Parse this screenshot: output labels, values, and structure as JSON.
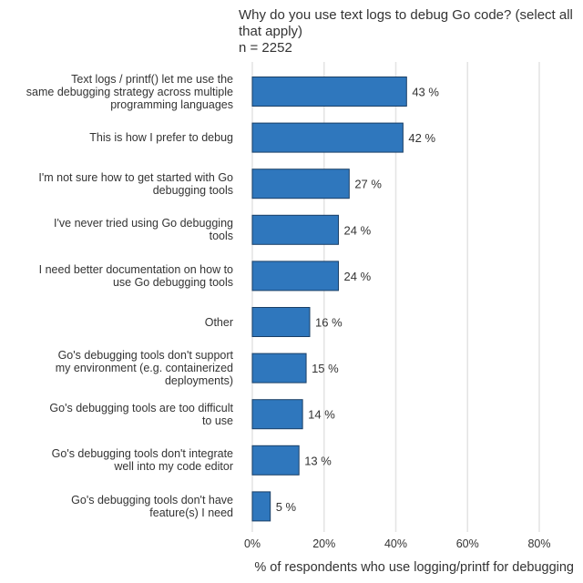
{
  "chart_data": {
    "type": "bar",
    "orientation": "horizontal",
    "title": "Why do you use text logs to debug Go code? (select all that apply)",
    "subtitle": "n = 2252",
    "xlabel": "% of respondents who use logging/printf for debugging",
    "ylabel": "",
    "xlim": [
      0,
      0.85
    ],
    "xticks": [
      0,
      0.2,
      0.4,
      0.6,
      0.8
    ],
    "xtick_labels": [
      "0%",
      "20%",
      "40%",
      "60%",
      "80%"
    ],
    "grid": true,
    "legend": "none",
    "bar_color": "#2f77bd",
    "bar_edge_color": "#1a3f66",
    "categories": [
      "Text logs / printf() let me use the same debugging strategy across multiple programming languages",
      "This is how I prefer to debug",
      "I'm not sure how to get started with Go debugging tools",
      "I've never tried using Go debugging tools",
      "I need better documentation on how to use Go debugging tools",
      "Other",
      "Go's debugging tools don't support my environment (e.g. containerized deployments)",
      "Go's debugging tools are too difficult to use",
      "Go's debugging tools don't integrate well into my code editor",
      "Go's debugging tools don't have feature(s) I need"
    ],
    "category_lines": [
      [
        "Text logs / printf() let me use the",
        "same debugging strategy across multiple",
        "programming languages"
      ],
      [
        "This is how I prefer to debug"
      ],
      [
        "I'm not sure how to get started with Go",
        "debugging tools"
      ],
      [
        "I've never tried using Go debugging",
        "tools"
      ],
      [
        "I need better documentation on how to",
        "use Go debugging tools"
      ],
      [
        "Other"
      ],
      [
        "Go's debugging tools don't support",
        "my environment (e.g. containerized",
        "deployments)"
      ],
      [
        "Go's debugging tools are too difficult",
        "to use"
      ],
      [
        "Go's debugging tools don't integrate",
        "well into my code editor"
      ],
      [
        "Go's debugging tools don't have",
        "feature(s) I need"
      ]
    ],
    "values": [
      0.43,
      0.42,
      0.27,
      0.24,
      0.24,
      0.16,
      0.15,
      0.14,
      0.13,
      0.05
    ],
    "value_labels": [
      "43 %",
      "42 %",
      "27 %",
      "24 %",
      "24 %",
      "16 %",
      "15 %",
      "14 %",
      "13 %",
      "5 %"
    ]
  }
}
